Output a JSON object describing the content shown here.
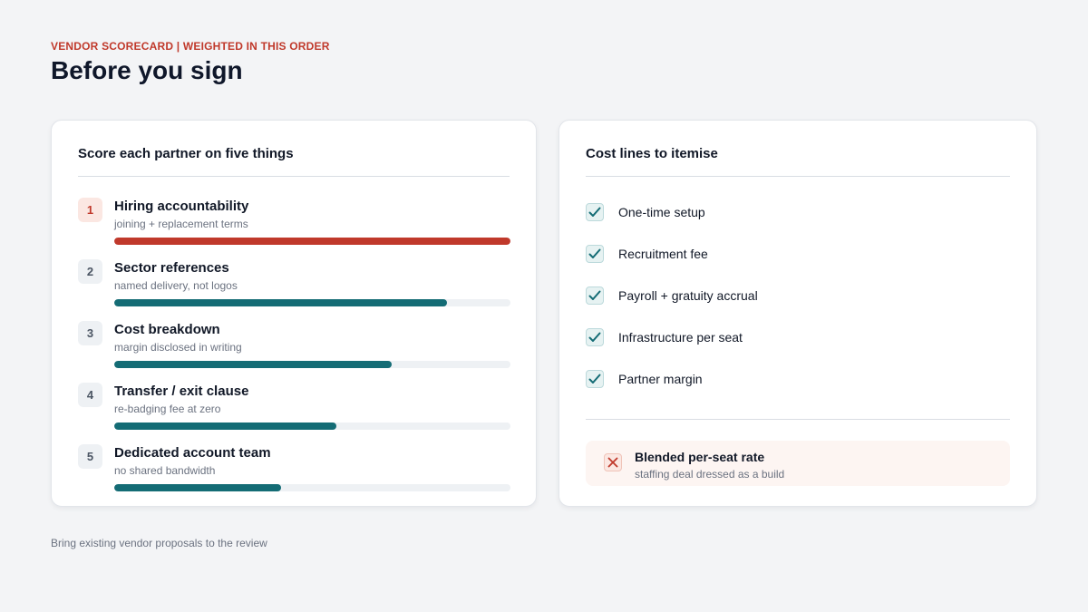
{
  "header": {
    "eyebrow": "VENDOR SCORECARD | WEIGHTED IN THIS ORDER",
    "title": "Before you sign"
  },
  "scorecard": {
    "title": "Score each partner on five things",
    "criteria": [
      {
        "rank": "1",
        "name": "Hiring accountability",
        "note": "joining + replacement terms",
        "weight": 1.0
      },
      {
        "rank": "2",
        "name": "Sector references",
        "note": "named delivery, not logos",
        "weight": 0.84
      },
      {
        "rank": "3",
        "name": "Cost breakdown",
        "note": "margin disclosed in writing",
        "weight": 0.7
      },
      {
        "rank": "4",
        "name": "Transfer / exit clause",
        "note": "re-badging fee at zero",
        "weight": 0.56
      },
      {
        "rank": "5",
        "name": "Dedicated account team",
        "note": "no shared bandwidth",
        "weight": 0.42
      }
    ]
  },
  "costs": {
    "title": "Cost lines to itemise",
    "items": [
      {
        "label": "One-time setup",
        "icon": "check-icon"
      },
      {
        "label": "Recruitment fee",
        "icon": "check-icon"
      },
      {
        "label": "Payroll + gratuity accrual",
        "icon": "check-icon"
      },
      {
        "label": "Infrastructure per seat",
        "icon": "check-icon"
      },
      {
        "label": "Partner margin",
        "icon": "check-icon"
      }
    ],
    "warning": {
      "title": "Blended per-seat rate",
      "note": "staffing deal dressed as a build",
      "icon": "cross-icon"
    }
  },
  "footer": {
    "text": "Bring existing vendor proposals to the review"
  },
  "colors": {
    "accent_red": "#c0392b",
    "accent_teal": "#146c75",
    "background": "#f3f4f6"
  }
}
